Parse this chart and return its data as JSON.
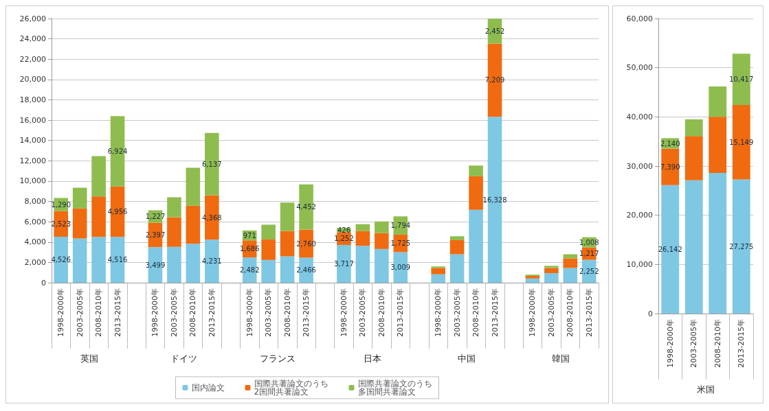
{
  "chart_data": [
    {
      "type": "bar",
      "stacked": true,
      "grid": "y",
      "legend": "bottom",
      "categories": [
        "1998-2000年",
        "2003-2005年",
        "2008-2010年",
        "2013-2015年",
        null,
        "1998-2000年",
        "2003-2005年",
        "2008-2010年",
        "2013-2015年",
        null,
        "1998-2000年",
        "2003-2005年",
        "2008-2010年",
        "2013-2015年",
        null,
        "1998-2000年",
        "2003-2005年",
        "2008-2010年",
        "2013-2015年",
        null,
        "1998-2000年",
        "2003-2005年",
        "2008-2010年",
        "2013-2015年",
        null,
        "1998-2000年",
        "2003-2005年",
        "2008-2010年",
        "2013-2015年"
      ],
      "ylim": [
        0,
        26000
      ],
      "yticks": [
        0,
        {
          "value": 2000,
          "label": "2,000"
        },
        {
          "value": 4000,
          "label": "4,000"
        },
        {
          "value": 6000,
          "label": "6,000"
        },
        {
          "value": 8000,
          "label": "8,000"
        },
        {
          "value": 10000,
          "label": "10,000"
        },
        {
          "value": 12000,
          "label": "12,000"
        },
        {
          "value": 14000,
          "label": "14,000"
        },
        {
          "value": 16000,
          "label": "16,000"
        },
        {
          "value": 18000,
          "label": "18,000"
        },
        {
          "value": 20000,
          "label": "20,000"
        },
        {
          "value": 22000,
          "label": "22,000"
        },
        {
          "value": 24000,
          "label": "24,000"
        },
        {
          "value": 26000,
          "label": "26,000"
        }
      ],
      "annotations": [
        "英国",
        "ドイツ",
        "フランス",
        "日本",
        "中国",
        "韓国"
      ],
      "series": [
        {
          "name": "国内論文",
          "color": "#7ec8e3",
          "values": [
            4526,
            4360,
            4500,
            4516,
            null,
            3499,
            3530,
            3840,
            4231,
            null,
            2482,
            2240,
            2600,
            2466,
            null,
            3717,
            3630,
            3320,
            3009,
            null,
            830,
            2800,
            7170,
            16328,
            null,
            420,
            940,
            1450,
            2252
          ],
          "value_labels": [
            "4,526",
            null,
            null,
            "4,516",
            null,
            "3,499",
            null,
            null,
            "4,231",
            null,
            "2,482",
            null,
            null,
            "2,466",
            null,
            "3,717",
            null,
            null,
            "3,009",
            null,
            null,
            null,
            null,
            "16,328",
            null,
            null,
            null,
            null,
            "2,252"
          ]
        },
        {
          "name": "国際共著論文のうち2国間共著論文",
          "color": "#f06a10",
          "values": [
            2523,
            2950,
            4000,
            4956,
            null,
            2397,
            2910,
            3740,
            4368,
            null,
            1686,
            2010,
            2490,
            2760,
            null,
            1252,
            1460,
            1560,
            1725,
            null,
            620,
            1390,
            3310,
            7209,
            null,
            250,
            510,
            940,
            1217
          ],
          "value_labels": [
            "2,523",
            null,
            null,
            "4,956",
            null,
            "2,397",
            null,
            null,
            "4,368",
            null,
            "1,686",
            null,
            null,
            "2,760",
            null,
            "1,252",
            null,
            null,
            "1,725",
            null,
            null,
            null,
            null,
            "7,209",
            null,
            null,
            null,
            null,
            "1,217"
          ]
        },
        {
          "name": "国際共著論文のうち多国間共著論文",
          "color": "#8fbc4f",
          "values": [
            1290,
            2040,
            3960,
            6924,
            null,
            1227,
            1970,
            3740,
            6137,
            null,
            971,
            1460,
            2800,
            4452,
            null,
            426,
            660,
            1150,
            1794,
            null,
            150,
            380,
            1050,
            2452,
            null,
            120,
            210,
            410,
            1008
          ],
          "value_labels": [
            "1,290",
            null,
            null,
            "6,924",
            null,
            "1,227",
            null,
            null,
            "6,137",
            null,
            "971",
            null,
            null,
            "4,452",
            null,
            "426",
            null,
            null,
            "1,794",
            null,
            null,
            null,
            null,
            "2,452",
            null,
            null,
            null,
            null,
            "1,008"
          ]
        }
      ]
    },
    {
      "type": "bar",
      "stacked": true,
      "grid": "y",
      "categories": [
        "1998-2000年",
        "2003-2005年",
        "2008-2010年",
        "2013-2015年"
      ],
      "ylim": [
        0,
        60000
      ],
      "yticks": [
        0,
        {
          "value": 10000,
          "label": "10,000"
        },
        {
          "value": 20000,
          "label": "20,000"
        },
        {
          "value": 30000,
          "label": "30,000"
        },
        {
          "value": 40000,
          "label": "40,000"
        },
        {
          "value": 50000,
          "label": "50,000"
        },
        {
          "value": 60000,
          "label": "60,000"
        }
      ],
      "annotations": [
        "米国"
      ],
      "series": [
        {
          "color": "#7ec8e3",
          "values": [
            26142,
            27100,
            28600,
            27275
          ],
          "value_labels": [
            "26,142",
            null,
            null,
            "27,275"
          ]
        },
        {
          "color": "#f06a10",
          "values": [
            7390,
            9000,
            11400,
            15149
          ],
          "value_labels": [
            "7,390",
            null,
            null,
            "15,149"
          ]
        },
        {
          "color": "#8fbc4f",
          "values": [
            2140,
            3400,
            6200,
            10417
          ],
          "value_labels": [
            "2,140",
            null,
            null,
            "10,417"
          ]
        }
      ]
    }
  ]
}
